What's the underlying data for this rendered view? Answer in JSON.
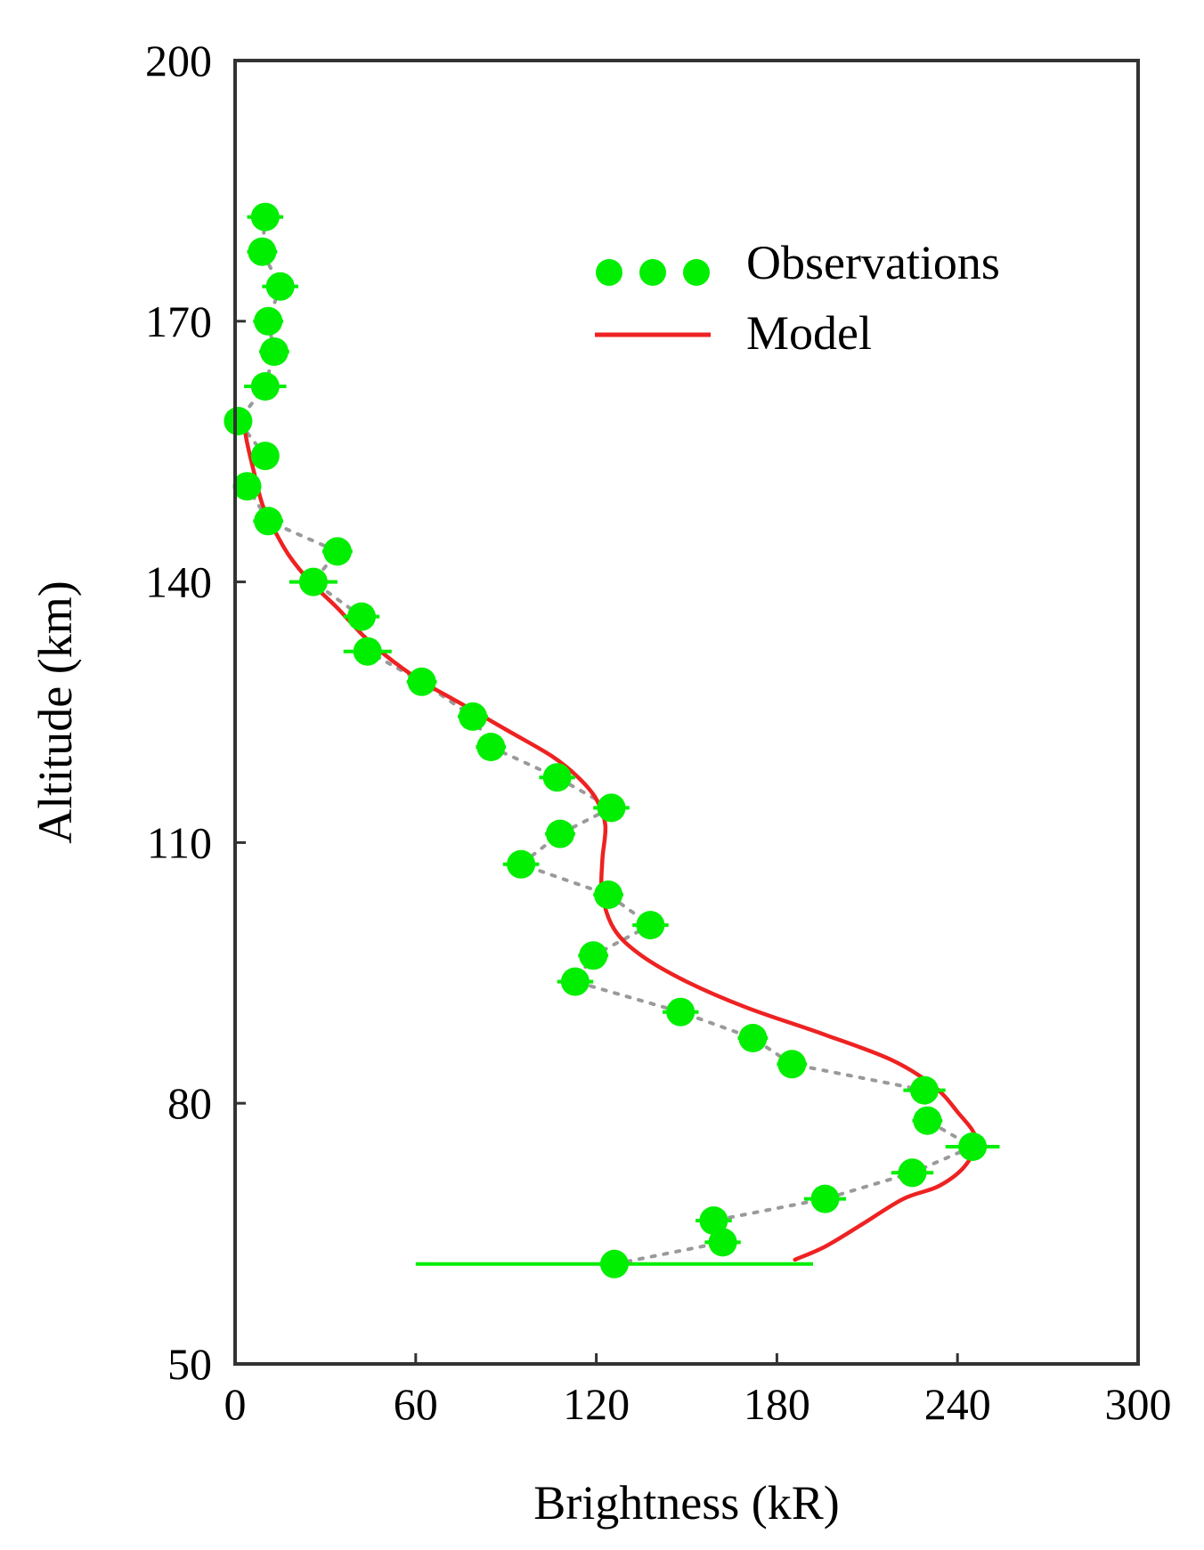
{
  "chart_data": {
    "type": "scatter",
    "title": "",
    "xlabel": "Brightness (kR)",
    "ylabel": "Altitude (km)",
    "xlim": [
      0,
      300
    ],
    "ylim": [
      50,
      200
    ],
    "xticks": [
      0,
      60,
      120,
      180,
      240,
      300
    ],
    "yticks": [
      50,
      80,
      110,
      140,
      170,
      200
    ],
    "grid": false,
    "legend_position": "top-right",
    "series": [
      {
        "name": "Observations",
        "kind": "points-with-xerror",
        "color": "#00ee00",
        "connector_color": "#9a9a9a",
        "points": [
          {
            "x": 10,
            "y": 182,
            "xerr": 6
          },
          {
            "x": 9,
            "y": 178,
            "xerr": 5
          },
          {
            "x": 15,
            "y": 174,
            "xerr": 6
          },
          {
            "x": 11,
            "y": 170,
            "xerr": 5
          },
          {
            "x": 13,
            "y": 166.5,
            "xerr": 5
          },
          {
            "x": 10,
            "y": 162.5,
            "xerr": 7
          },
          {
            "x": 1,
            "y": 158.5,
            "xerr": 3
          },
          {
            "x": 10,
            "y": 154.5,
            "xerr": 4
          },
          {
            "x": 4,
            "y": 151,
            "xerr": 3
          },
          {
            "x": 11,
            "y": 147,
            "xerr": 5
          },
          {
            "x": 34,
            "y": 143.5,
            "xerr": 5
          },
          {
            "x": 26,
            "y": 140,
            "xerr": 8
          },
          {
            "x": 42,
            "y": 136,
            "xerr": 6
          },
          {
            "x": 44,
            "y": 132,
            "xerr": 8
          },
          {
            "x": 62,
            "y": 128.5,
            "xerr": 5
          },
          {
            "x": 79,
            "y": 124.5,
            "xerr": 5
          },
          {
            "x": 85,
            "y": 121,
            "xerr": 5
          },
          {
            "x": 107,
            "y": 117.5,
            "xerr": 6
          },
          {
            "x": 125,
            "y": 114,
            "xerr": 6
          },
          {
            "x": 108,
            "y": 111,
            "xerr": 5
          },
          {
            "x": 95,
            "y": 107.5,
            "xerr": 6
          },
          {
            "x": 124,
            "y": 104,
            "xerr": 5
          },
          {
            "x": 138,
            "y": 100.5,
            "xerr": 6
          },
          {
            "x": 119,
            "y": 97,
            "xerr": 5
          },
          {
            "x": 113,
            "y": 94,
            "xerr": 6
          },
          {
            "x": 148,
            "y": 90.5,
            "xerr": 6
          },
          {
            "x": 172,
            "y": 87.5,
            "xerr": 5
          },
          {
            "x": 185,
            "y": 84.5,
            "xerr": 5
          },
          {
            "x": 229,
            "y": 81.5,
            "xerr": 7
          },
          {
            "x": 230,
            "y": 78,
            "xerr": 5
          },
          {
            "x": 245,
            "y": 75,
            "xerr": 9
          },
          {
            "x": 225,
            "y": 72,
            "xerr": 7
          },
          {
            "x": 196,
            "y": 69,
            "xerr": 7
          },
          {
            "x": 159,
            "y": 66.5,
            "xerr": 6
          },
          {
            "x": 162,
            "y": 64,
            "xerr": 6
          },
          {
            "x": 126,
            "y": 61.5,
            "xerr": 66
          }
        ]
      },
      {
        "name": "Model",
        "kind": "line",
        "color": "#ee2222",
        "points": [
          {
            "x": 3,
            "y": 158
          },
          {
            "x": 4,
            "y": 156
          },
          {
            "x": 6,
            "y": 153
          },
          {
            "x": 9,
            "y": 149
          },
          {
            "x": 13,
            "y": 146
          },
          {
            "x": 18,
            "y": 143
          },
          {
            "x": 25,
            "y": 140
          },
          {
            "x": 34,
            "y": 137
          },
          {
            "x": 45,
            "y": 133
          },
          {
            "x": 60,
            "y": 129
          },
          {
            "x": 75,
            "y": 126
          },
          {
            "x": 90,
            "y": 123
          },
          {
            "x": 105,
            "y": 120
          },
          {
            "x": 114,
            "y": 117.5
          },
          {
            "x": 120,
            "y": 115
          },
          {
            "x": 123,
            "y": 112
          },
          {
            "x": 122,
            "y": 108
          },
          {
            "x": 122,
            "y": 104
          },
          {
            "x": 126,
            "y": 100
          },
          {
            "x": 135,
            "y": 97
          },
          {
            "x": 150,
            "y": 94
          },
          {
            "x": 170,
            "y": 91
          },
          {
            "x": 195,
            "y": 88
          },
          {
            "x": 218,
            "y": 85
          },
          {
            "x": 232,
            "y": 82
          },
          {
            "x": 240,
            "y": 79
          },
          {
            "x": 246,
            "y": 76
          },
          {
            "x": 243,
            "y": 73
          },
          {
            "x": 234,
            "y": 70.5
          },
          {
            "x": 222,
            "y": 69
          },
          {
            "x": 208,
            "y": 66
          },
          {
            "x": 196,
            "y": 63.5
          },
          {
            "x": 186,
            "y": 62
          }
        ]
      }
    ],
    "annotations": []
  }
}
